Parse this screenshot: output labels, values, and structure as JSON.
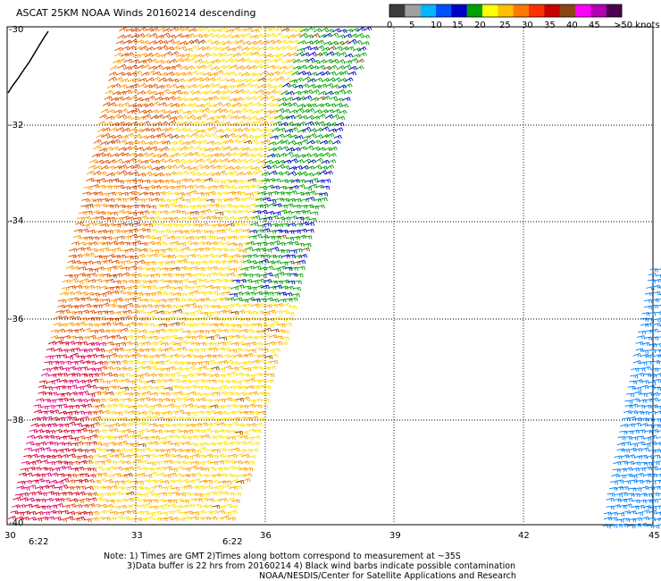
{
  "title": "ASCAT 25KM NOAA Winds 20160214 descending",
  "colorbar": {
    "labels": [
      "0",
      "5",
      "10",
      "15",
      "20",
      "25",
      "30",
      "35",
      "40",
      "45",
      ">50 knots"
    ],
    "colors": [
      "#3c3c3c",
      "#a0a0a0",
      "#00b8ff",
      "#0050ff",
      "#0000c8",
      "#00a000",
      "#ffff00",
      "#ffc000",
      "#ff7800",
      "#ff3000",
      "#c80000",
      "#8b4513",
      "#ff00ff",
      "#b400b4",
      "#500050"
    ]
  },
  "map": {
    "lon_ticks": [
      "30",
      "33",
      "36",
      "39",
      "42",
      "45"
    ],
    "lat_ticks": [
      "-30",
      "-32",
      "-34",
      "-36",
      "-38",
      "-40"
    ],
    "times": [
      "6:22",
      "6:22"
    ],
    "time_color": "#800080"
  },
  "notes": {
    "line1": "Note: 1) Times are GMT 2)Times along bottom correspond to measurement at ~35S",
    "line2": "3)Data buffer is 22 hrs from 20160214 4) Black wind barbs indicate possible contamination",
    "line3": "NOAA/NESDIS/Center for Satellite Applications and Research"
  },
  "barb_colors": {
    "light_blue": "#0080ff",
    "blue": "#0000c8",
    "green": "#00a000",
    "yellow": "#ffe000",
    "orange": "#ff9a00",
    "dark_orange": "#e05000",
    "red": "#d00020",
    "pink": "#e0007a",
    "brown": "#8b4513",
    "black": "#000000"
  }
}
